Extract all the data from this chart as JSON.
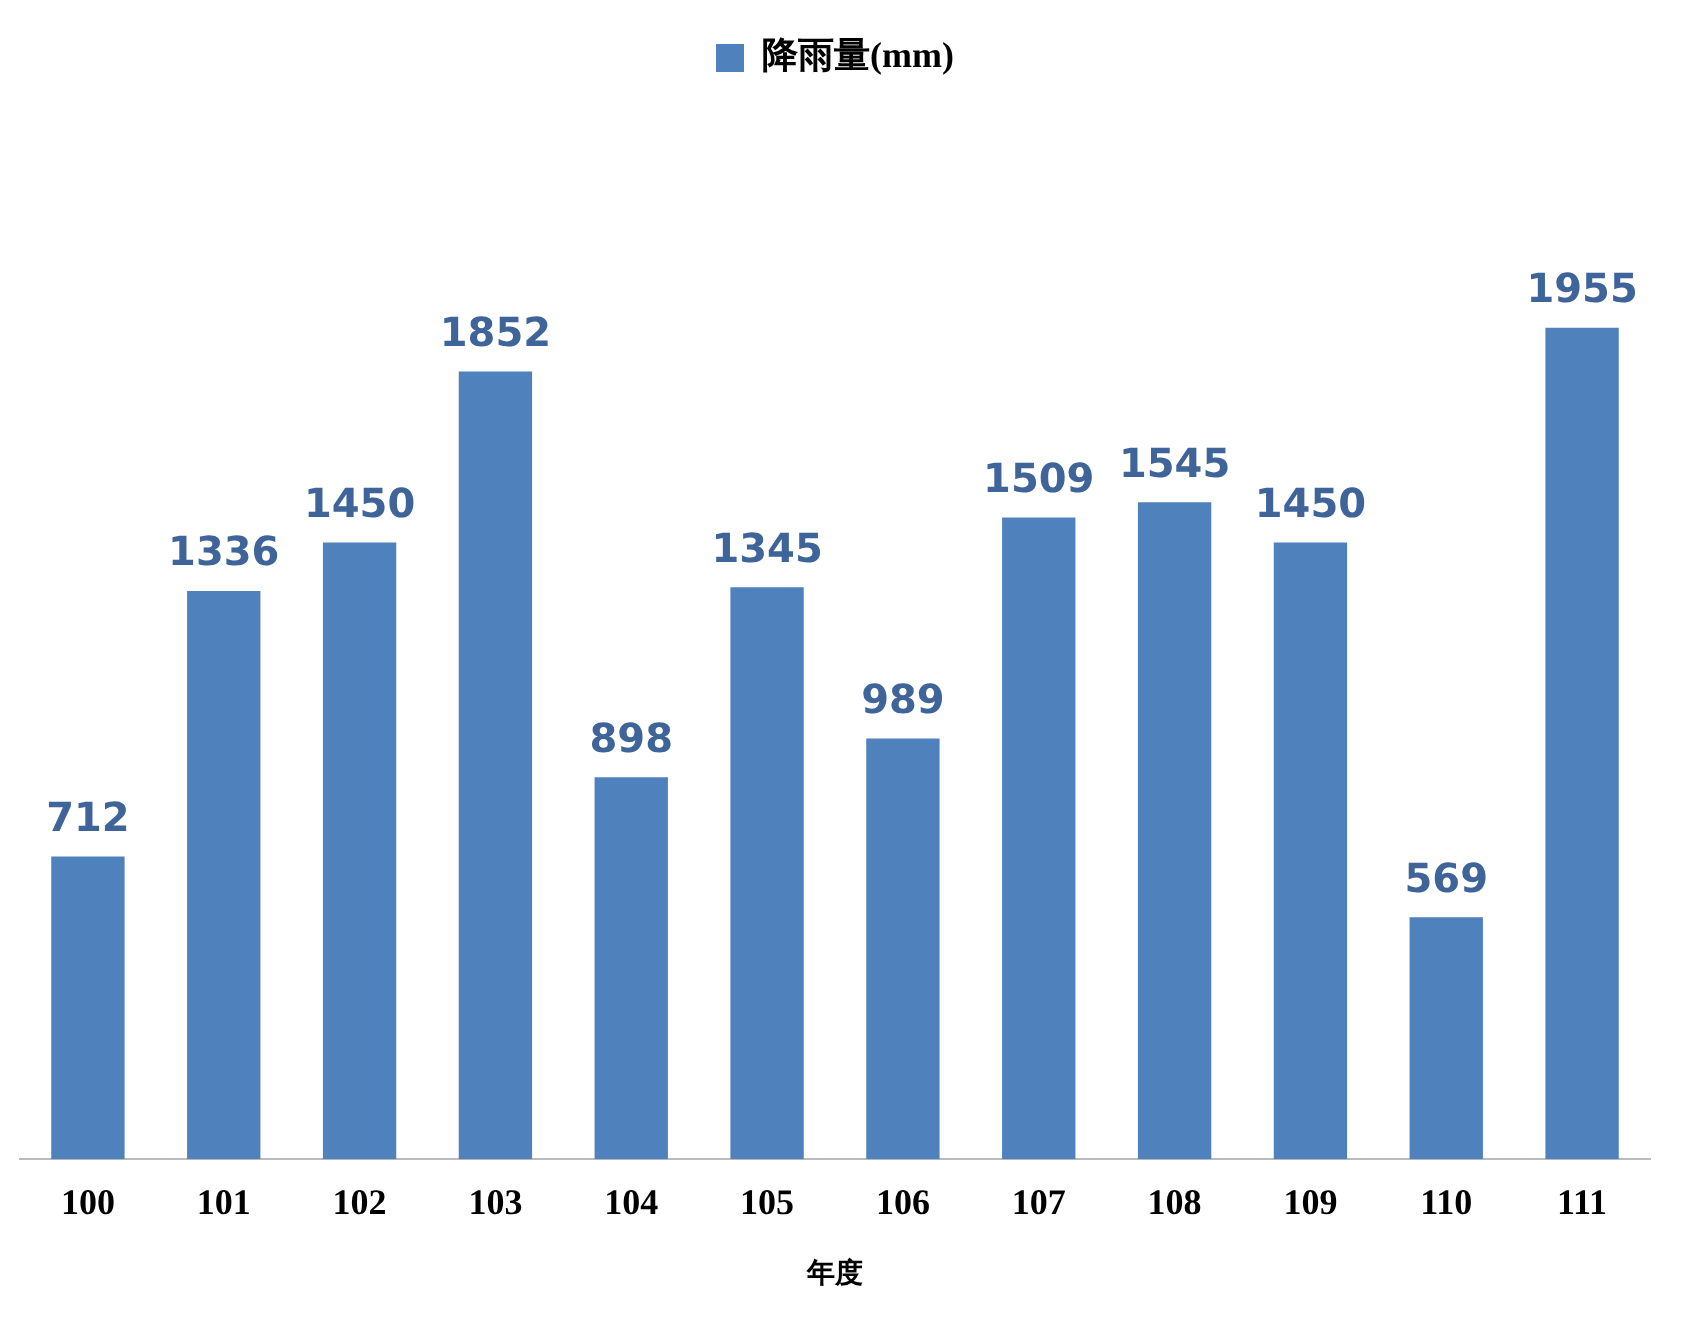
{
  "chart_data": {
    "type": "bar",
    "xlabel": "年度",
    "categories": [
      "100",
      "101",
      "102",
      "103",
      "104",
      "105",
      "106",
      "107",
      "108",
      "109",
      "110",
      "111"
    ],
    "series": [
      {
        "name": "降雨量(mm)",
        "color": "#4f81bd",
        "values": [
          712,
          1336,
          1450,
          1852,
          898,
          1345,
          989,
          1509,
          1545,
          1450,
          569,
          1955
        ]
      }
    ],
    "data_labels": true,
    "legend": "top",
    "grid": false,
    "tick_labels": "x"
  }
}
